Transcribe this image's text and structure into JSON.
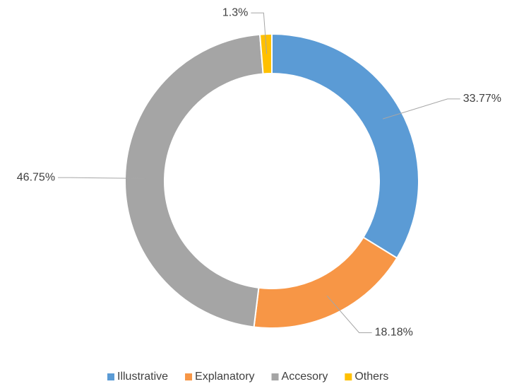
{
  "chart_data": {
    "type": "donut",
    "categories": [
      "Illustrative",
      "Explanatory",
      "Accesory",
      "Others"
    ],
    "values": [
      33.77,
      18.18,
      46.75,
      1.3
    ],
    "value_labels": [
      "33.77%",
      "18.18%",
      "46.75%",
      "1.3%"
    ],
    "colors": [
      "#5b9bd5",
      "#f79646",
      "#a5a5a5",
      "#ffc000"
    ],
    "legend": "bottom"
  }
}
